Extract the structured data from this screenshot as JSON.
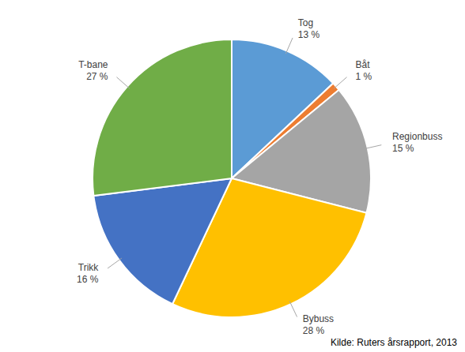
{
  "chart_data": {
    "type": "pie",
    "categories": [
      "Tog",
      "Båt",
      "Regionbuss",
      "Bybuss",
      "Trikk",
      "T-bane"
    ],
    "values": [
      13,
      1,
      15,
      28,
      16,
      27
    ],
    "value_labels": [
      "13 %",
      "1 %",
      "15 %",
      "28 %",
      "16 %",
      "27 %"
    ],
    "colors": [
      "#5b9bd5",
      "#ed7d31",
      "#a5a5a5",
      "#ffc000",
      "#4472c4",
      "#70ad47"
    ],
    "data_labels": true,
    "annotations": [
      "Kilde: Ruters årsrapport, 2013"
    ]
  }
}
